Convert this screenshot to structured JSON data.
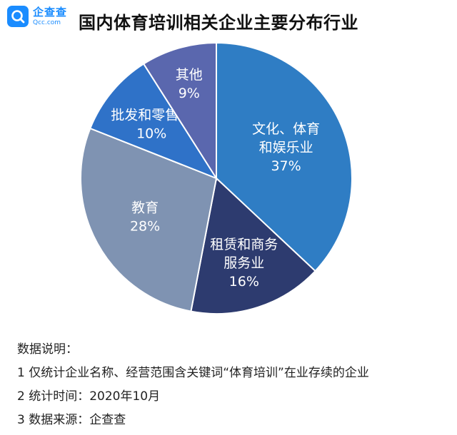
{
  "brand": {
    "name": "企查查",
    "domain": "Qcc.com"
  },
  "title": "国内体育培训相关企业主要分布行业",
  "chart_data": {
    "type": "pie",
    "title": "国内体育培训相关企业主要分布行业",
    "slices": [
      {
        "label": "文化、体育和娱乐业",
        "value": 37,
        "display": "37%",
        "color": "#2f7dc4",
        "lines": [
          "文化、体育",
          "和娱乐业"
        ]
      },
      {
        "label": "租赁和商务服务业",
        "value": 16,
        "display": "16%",
        "color": "#2d3b6f",
        "lines": [
          "租赁和商务",
          "服务业"
        ]
      },
      {
        "label": "教育",
        "value": 28,
        "display": "28%",
        "color": "#7f93b2",
        "lines": [
          "教育"
        ]
      },
      {
        "label": "批发和零售业",
        "value": 10,
        "display": "10%",
        "color": "#2f72c8",
        "lines": [
          "批发和零售业"
        ]
      },
      {
        "label": "其他",
        "value": 9,
        "display": "9%",
        "color": "#5a67ae",
        "lines": [
          "其他"
        ]
      }
    ]
  },
  "notes": {
    "heading": "数据说明：",
    "line1": "1 仅统计企业名称、经营范围含关键词“体育培训”在业存续的企业",
    "line2": "2 统计时间：2020年10月",
    "line3": "3 数据来源：企查查"
  }
}
